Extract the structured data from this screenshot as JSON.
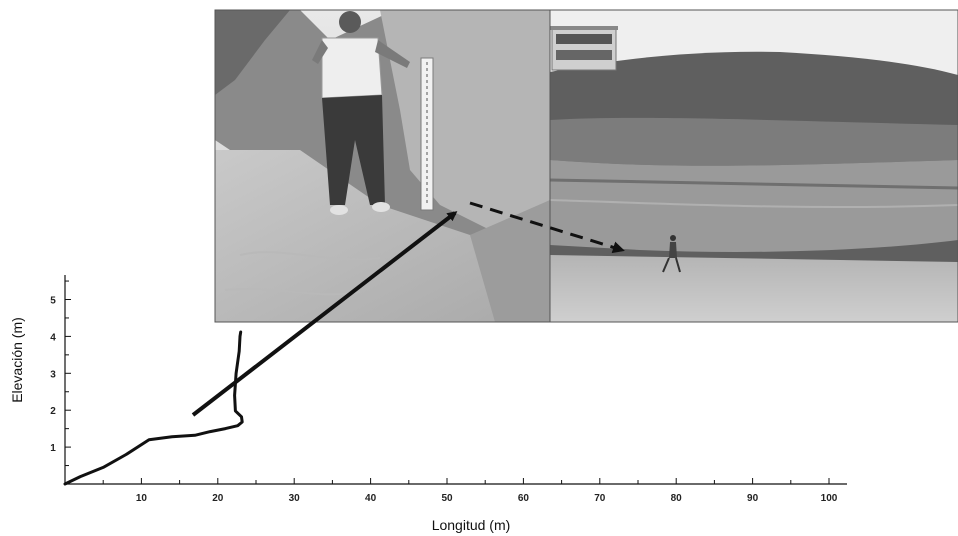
{
  "chart_data": {
    "type": "line",
    "title": "",
    "xlabel": "Longitud (m)",
    "ylabel": "Elevación (m)",
    "xlim": [
      0,
      100
    ],
    "ylim": [
      0,
      5.5
    ],
    "x_ticks": [
      10,
      20,
      30,
      40,
      50,
      60,
      70,
      80,
      90,
      100
    ],
    "y_ticks": [
      1,
      2,
      3,
      4,
      5
    ],
    "grid": false,
    "series": [
      {
        "x": [
          0,
          2,
          5,
          8,
          11,
          14,
          17,
          19,
          21,
          22.6,
          23.2,
          23.1,
          22.3,
          22.2,
          22.4,
          22.8,
          22.9,
          23.0
        ],
        "y": [
          0,
          0.2,
          0.45,
          0.8,
          1.2,
          1.28,
          1.32,
          1.42,
          1.5,
          1.58,
          1.68,
          1.82,
          1.98,
          2.4,
          3.0,
          3.6,
          4.0,
          4.12
        ]
      }
    ]
  },
  "photos": {
    "left": {
      "subject": "person-with-measuring-staff-at-dune-toe"
    },
    "right": {
      "subject": "coastal-cliff-with-person-walking-on-beach"
    }
  }
}
